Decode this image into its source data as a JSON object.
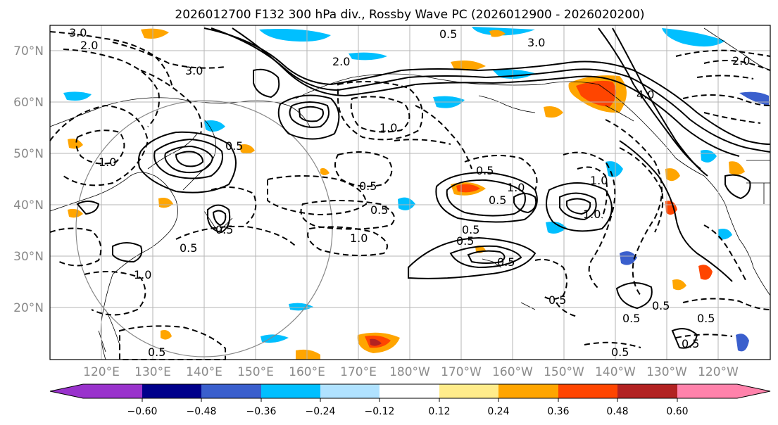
{
  "map": {
    "title": "2026012700 F132 300 hPa div., Rossby Wave PC (2026012900 - 2026020200)",
    "lat_labels": [
      "70°N",
      "60°N",
      "50°N",
      "40°N",
      "30°N",
      "20°N"
    ],
    "lon_labels": [
      "120°E",
      "130°E",
      "140°E",
      "150°E",
      "160°E",
      "170°E",
      "180°W",
      "170°W",
      "160°W",
      "150°W",
      "140°W",
      "130°W",
      "120°W"
    ],
    "lat_range": [
      10,
      75
    ],
    "lon_range": [
      110,
      250
    ],
    "contour_labels": [
      "3.0",
      "2.0",
      "3.0",
      "2.0",
      "1.0",
      "0.5",
      "0.5",
      "0.5",
      "0.5",
      "1.0",
      "1.0",
      "0.5",
      "0.5",
      "1.0",
      "0.5",
      "0.5",
      "1.0",
      "0.5",
      "0.5",
      "1.0",
      "0.5",
      "1.0",
      "0.5",
      "0.5",
      "4.0",
      "0.5",
      "0.5",
      "0.5",
      "0.5",
      "0.5",
      "3.0",
      "2.0"
    ]
  },
  "colorbar": {
    "tick_labels": [
      "−0.60",
      "−0.48",
      "−0.36",
      "−0.24",
      "−0.12",
      "0.12",
      "0.24",
      "0.36",
      "0.48",
      "0.60"
    ],
    "colors": [
      "#9932cc",
      "#00008b",
      "#3a5fcd",
      "#00bfff",
      "#b0e2ff",
      "#ffffff",
      "#ffec8b",
      "#ffa500",
      "#ff4500",
      "#b22222",
      "#ff82ab"
    ]
  }
}
